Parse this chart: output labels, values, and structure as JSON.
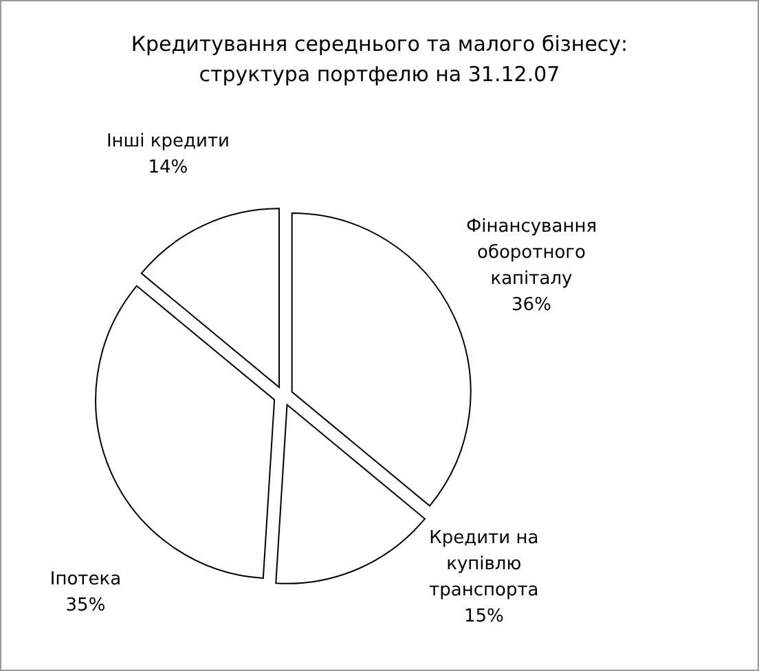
{
  "chart_data": {
    "type": "pie",
    "title": "Кредитування середнього та малого бізнесу:\nструктура портфелю на 31.12.07",
    "categories": [
      "Фінансування оборотного капіталу",
      "Кредити на купівлю транспорта",
      "Іпотека",
      "Інші кредити"
    ],
    "values": [
      36,
      15,
      35,
      14
    ],
    "value_labels": [
      "36%",
      "15%",
      "35%",
      "14%"
    ],
    "colors": [
      "#ffffff",
      "#ffffff",
      "#ffffff",
      "#ffffff"
    ]
  }
}
